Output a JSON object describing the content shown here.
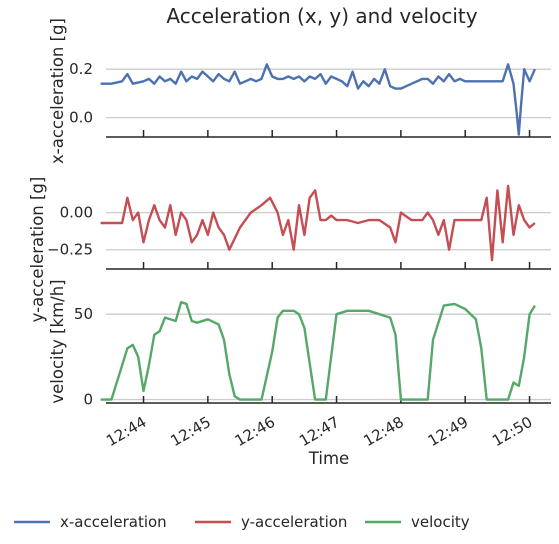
{
  "chart_data": {
    "title": "Acceleration (x, y) and velocity",
    "xlabel": "Time",
    "x_ticks": [
      "12:44",
      "12:45",
      "12:46",
      "12:47",
      "12:48",
      "12:49",
      "12:50"
    ],
    "x_range_minutes": [
      "12:43:25",
      "12:50:20"
    ],
    "grid": "horizontal",
    "legend_position": "bottom",
    "panels": [
      {
        "type": "line",
        "name": "x-acceleration",
        "ylabel": "x-acceleration [g]",
        "ylim": [
          -0.08,
          0.3
        ],
        "y_ticks": [
          0.0,
          0.2
        ],
        "y_tick_labels": [
          "0.0",
          "0.2"
        ],
        "color": "#4C72B0",
        "x": [
          "12:43:20",
          "12:43:30",
          "12:43:40",
          "12:43:45",
          "12:43:50",
          "12:44:00",
          "12:44:05",
          "12:44:10",
          "12:44:15",
          "12:44:20",
          "12:44:25",
          "12:44:30",
          "12:44:35",
          "12:44:40",
          "12:44:45",
          "12:44:50",
          "12:44:55",
          "12:45:00",
          "12:45:05",
          "12:45:10",
          "12:45:15",
          "12:45:20",
          "12:45:25",
          "12:45:30",
          "12:45:35",
          "12:45:40",
          "12:45:45",
          "12:45:50",
          "12:45:55",
          "12:46:00",
          "12:46:05",
          "12:46:10",
          "12:46:15",
          "12:46:20",
          "12:46:25",
          "12:46:30",
          "12:46:35",
          "12:46:40",
          "12:46:45",
          "12:46:50",
          "12:46:55",
          "12:47:00",
          "12:47:05",
          "12:47:10",
          "12:47:15",
          "12:47:20",
          "12:47:25",
          "12:47:30",
          "12:47:35",
          "12:47:40",
          "12:47:45",
          "12:47:50",
          "12:47:55",
          "12:48:00",
          "12:48:05",
          "12:48:10",
          "12:48:15",
          "12:48:20",
          "12:48:25",
          "12:48:30",
          "12:48:35",
          "12:48:40",
          "12:48:45",
          "12:48:50",
          "12:48:55",
          "12:49:00",
          "12:49:05",
          "12:49:10",
          "12:49:15",
          "12:49:20",
          "12:49:25",
          "12:49:30",
          "12:49:35",
          "12:49:40",
          "12:49:45",
          "12:49:48",
          "12:49:50",
          "12:49:52",
          "12:49:55",
          "12:50:00",
          "12:50:05"
        ],
        "values": [
          0.14,
          0.14,
          0.15,
          0.18,
          0.14,
          0.15,
          0.16,
          0.14,
          0.17,
          0.15,
          0.16,
          0.14,
          0.19,
          0.15,
          0.17,
          0.16,
          0.19,
          0.17,
          0.15,
          0.18,
          0.16,
          0.15,
          0.19,
          0.14,
          0.15,
          0.16,
          0.15,
          0.16,
          0.22,
          0.17,
          0.16,
          0.16,
          0.17,
          0.16,
          0.17,
          0.15,
          0.17,
          0.16,
          0.18,
          0.14,
          0.17,
          0.16,
          0.15,
          0.13,
          0.19,
          0.12,
          0.15,
          0.13,
          0.16,
          0.14,
          0.2,
          0.13,
          0.12,
          0.12,
          0.13,
          0.14,
          0.15,
          0.16,
          0.16,
          0.14,
          0.17,
          0.15,
          0.18,
          0.15,
          0.16,
          0.15,
          0.15,
          0.15,
          0.15,
          0.15,
          0.15,
          0.15,
          0.15,
          0.22,
          0.14,
          0.02,
          -0.07,
          0.05,
          0.2,
          0.15,
          0.2
        ]
      },
      {
        "type": "line",
        "name": "y-acceleration",
        "ylabel": "y-acceleration [g]",
        "ylim": [
          -0.38,
          0.22
        ],
        "y_ticks": [
          -0.25,
          0.0
        ],
        "y_tick_labels": [
          "−0.25",
          "0.00"
        ],
        "color": "#C44E52",
        "x": [
          "12:43:20",
          "12:43:30",
          "12:43:40",
          "12:43:45",
          "12:43:50",
          "12:43:55",
          "12:44:00",
          "12:44:05",
          "12:44:10",
          "12:44:15",
          "12:44:20",
          "12:44:25",
          "12:44:30",
          "12:44:35",
          "12:44:40",
          "12:44:45",
          "12:44:50",
          "12:44:55",
          "12:45:00",
          "12:45:05",
          "12:45:10",
          "12:45:15",
          "12:45:20",
          "12:45:30",
          "12:45:40",
          "12:45:50",
          "12:45:58",
          "12:46:05",
          "12:46:10",
          "12:46:15",
          "12:46:20",
          "12:46:25",
          "12:46:30",
          "12:46:35",
          "12:46:40",
          "12:46:45",
          "12:46:50",
          "12:46:55",
          "12:47:00",
          "12:47:10",
          "12:47:20",
          "12:47:30",
          "12:47:40",
          "12:47:50",
          "12:47:55",
          "12:48:00",
          "12:48:10",
          "12:48:20",
          "12:48:25",
          "12:48:30",
          "12:48:35",
          "12:48:40",
          "12:48:45",
          "12:48:50",
          "12:48:55",
          "12:49:00",
          "12:49:05",
          "12:49:10",
          "12:49:15",
          "12:49:20",
          "12:49:25",
          "12:49:30",
          "12:49:35",
          "12:49:40",
          "12:49:45",
          "12:49:50",
          "12:49:55",
          "12:50:00",
          "12:50:05"
        ],
        "values": [
          -0.07,
          -0.07,
          -0.07,
          0.1,
          -0.05,
          0.0,
          -0.2,
          -0.05,
          0.05,
          -0.05,
          -0.1,
          0.05,
          -0.15,
          0.0,
          -0.05,
          -0.2,
          -0.15,
          -0.05,
          -0.15,
          0.0,
          -0.1,
          -0.15,
          -0.25,
          -0.1,
          0.0,
          0.05,
          0.1,
          0.0,
          -0.15,
          -0.05,
          -0.25,
          0.05,
          -0.15,
          0.1,
          0.15,
          -0.05,
          -0.05,
          -0.02,
          -0.05,
          -0.05,
          -0.07,
          -0.05,
          -0.05,
          -0.1,
          -0.2,
          0.0,
          -0.05,
          -0.05,
          0.0,
          -0.05,
          -0.15,
          -0.05,
          -0.25,
          -0.05,
          -0.05,
          -0.05,
          -0.05,
          -0.05,
          -0.05,
          0.1,
          -0.32,
          0.15,
          -0.2,
          0.18,
          -0.15,
          0.05,
          -0.05,
          -0.1,
          -0.07
        ]
      },
      {
        "type": "line",
        "name": "velocity",
        "ylabel": "velocity [km/h]",
        "ylim": [
          -2,
          70
        ],
        "y_ticks": [
          0,
          50
        ],
        "y_tick_labels": [
          "0",
          "50"
        ],
        "color": "#55A868",
        "x": [
          "12:43:20",
          "12:43:30",
          "12:43:40",
          "12:43:45",
          "12:43:50",
          "12:43:55",
          "12:44:00",
          "12:44:05",
          "12:44:10",
          "12:44:15",
          "12:44:20",
          "12:44:30",
          "12:44:35",
          "12:44:40",
          "12:44:45",
          "12:44:50",
          "12:45:00",
          "12:45:10",
          "12:45:15",
          "12:45:20",
          "12:45:25",
          "12:45:30",
          "12:45:40",
          "12:45:50",
          "12:46:00",
          "12:46:05",
          "12:46:10",
          "12:46:15",
          "12:46:20",
          "12:46:25",
          "12:46:30",
          "12:46:40",
          "12:46:50",
          "12:47:00",
          "12:47:10",
          "12:47:20",
          "12:47:30",
          "12:47:40",
          "12:47:50",
          "12:47:55",
          "12:48:00",
          "12:48:10",
          "12:48:20",
          "12:48:25",
          "12:48:30",
          "12:48:40",
          "12:48:50",
          "12:49:00",
          "12:49:10",
          "12:49:15",
          "12:49:20",
          "12:49:30",
          "12:49:40",
          "12:49:45",
          "12:49:50",
          "12:49:55",
          "12:50:00",
          "12:50:05"
        ],
        "values": [
          0,
          0,
          20,
          30,
          32,
          25,
          5,
          20,
          38,
          40,
          48,
          46,
          57,
          56,
          46,
          45,
          47,
          44,
          35,
          15,
          2,
          0,
          0,
          0,
          28,
          48,
          52,
          52,
          52,
          50,
          42,
          0,
          0,
          50,
          52,
          52,
          52,
          50,
          48,
          38,
          0,
          0,
          0,
          0,
          35,
          55,
          56,
          53,
          47,
          30,
          0,
          0,
          0,
          10,
          8,
          25,
          50,
          55
        ]
      }
    ],
    "legend": [
      {
        "label": "x-acceleration",
        "color": "#4C72B0"
      },
      {
        "label": "y-acceleration",
        "color": "#C44E52"
      },
      {
        "label": "velocity",
        "color": "#55A868"
      }
    ]
  }
}
